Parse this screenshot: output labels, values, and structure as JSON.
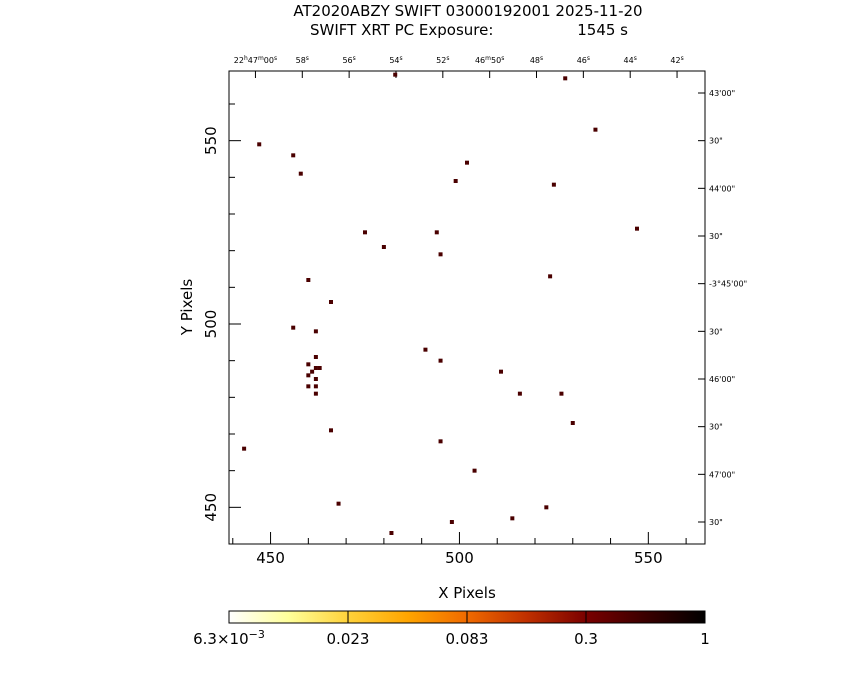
{
  "chart_data": {
    "type": "scatter",
    "title": "AT2020ABZY SWIFT 03000192001 2025-11-20",
    "subtitle_prefix": "SWIFT XRT PC Exposure:",
    "subtitle_value": "1545 s",
    "xlabel": "X Pixels",
    "ylabel": "Y Pixels",
    "xlim": [
      439,
      565
    ],
    "ylim": [
      440,
      569
    ],
    "x_ticks": [
      450,
      500,
      550
    ],
    "y_ticks": [
      450,
      500,
      550
    ],
    "top_ra_labels": [
      "22h47m00s",
      "58s",
      "56s",
      "54s",
      "52s",
      "46m50s",
      "48s",
      "46s",
      "44s",
      "42s"
    ],
    "top_ra_x": [
      446,
      458.4,
      470.8,
      483.2,
      495.6,
      508,
      520.4,
      532.8,
      545.2,
      557.6
    ],
    "right_dec_labels": [
      "43'00\"",
      "30\"",
      "44'00\"",
      "30\"",
      "-3°45'00\"",
      "30\"",
      "46'00\"",
      "30\"",
      "47'00\"",
      "30\""
    ],
    "right_dec_y": [
      563,
      550,
      537,
      524,
      511,
      498,
      485,
      472,
      459,
      446
    ],
    "grid": false,
    "marker_color": "#4a0000",
    "points": [
      [
        483,
        568
      ],
      [
        528,
        567
      ],
      [
        536,
        553
      ],
      [
        447,
        549
      ],
      [
        456,
        546
      ],
      [
        502,
        544
      ],
      [
        458,
        541
      ],
      [
        499,
        539
      ],
      [
        525,
        538
      ],
      [
        547,
        526
      ],
      [
        475,
        525
      ],
      [
        494,
        525
      ],
      [
        480,
        521
      ],
      [
        495,
        519
      ],
      [
        524,
        513
      ],
      [
        460,
        512
      ],
      [
        466,
        506
      ],
      [
        456,
        499
      ],
      [
        462,
        498
      ],
      [
        491,
        493
      ],
      [
        462,
        491
      ],
      [
        495,
        490
      ],
      [
        460,
        489
      ],
      [
        462,
        488
      ],
      [
        463,
        488
      ],
      [
        461,
        487
      ],
      [
        460,
        486
      ],
      [
        462,
        485
      ],
      [
        511,
        487
      ],
      [
        460,
        483
      ],
      [
        462,
        483
      ],
      [
        462,
        481
      ],
      [
        516,
        481
      ],
      [
        527,
        481
      ],
      [
        530,
        473
      ],
      [
        466,
        471
      ],
      [
        495,
        468
      ],
      [
        443,
        466
      ],
      [
        504,
        460
      ],
      [
        468,
        451
      ],
      [
        523,
        450
      ],
      [
        514,
        447
      ],
      [
        498,
        446
      ],
      [
        482,
        443
      ]
    ],
    "colorbar": {
      "tick_labels": [
        "6.3×10⁻³",
        "0.023",
        "0.083",
        "0.3",
        "1"
      ],
      "gradient": [
        "#ffffff",
        "#ffff9a",
        "#ffd23a",
        "#ffa500",
        "#f06a00",
        "#c03000",
        "#7a0000",
        "#3a0000",
        "#000000"
      ]
    }
  }
}
